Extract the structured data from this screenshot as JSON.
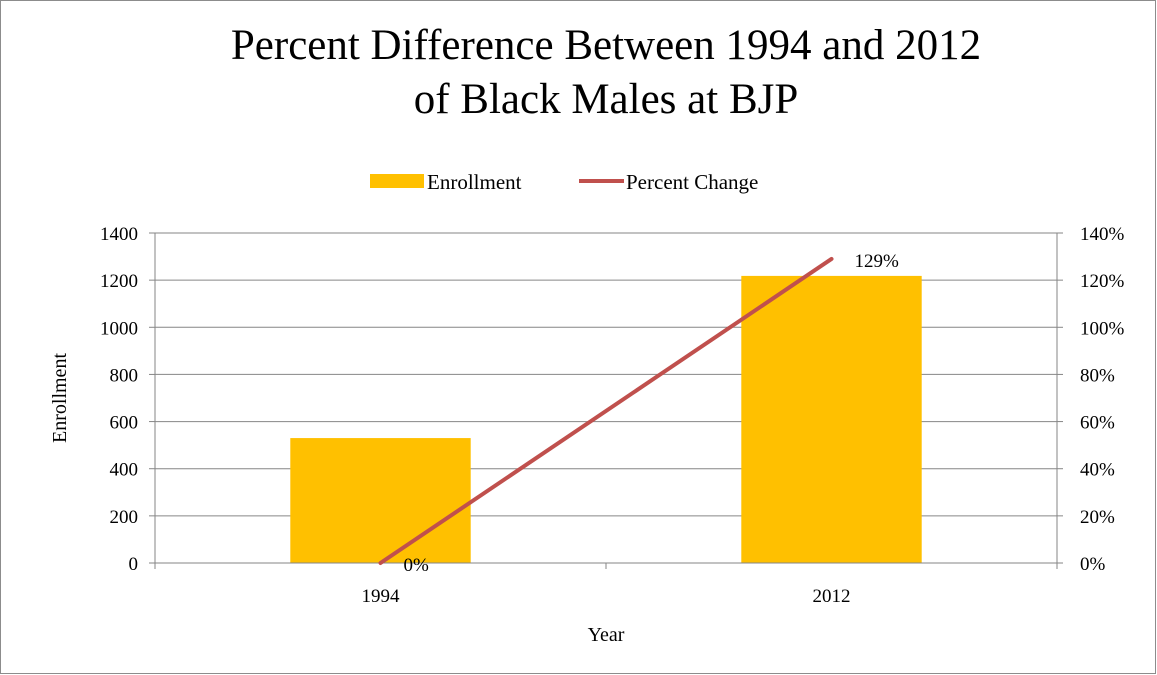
{
  "chart_data": {
    "type": "bar",
    "title_lines": [
      "Percent Difference Between 1994 and 2012",
      "of Black Males at BJP"
    ],
    "categories": [
      "1994",
      "2012"
    ],
    "xlabel": "Year",
    "ylabel": "Enrollment",
    "ylim": [
      0,
      1400
    ],
    "y_ticks": [
      "0",
      "200",
      "400",
      "600",
      "800",
      "1000",
      "1200",
      "1400"
    ],
    "y2lim": [
      0,
      140
    ],
    "y2_ticks": [
      "0%",
      "20%",
      "40%",
      "60%",
      "80%",
      "100%",
      "120%",
      "140%"
    ],
    "grid": true,
    "legend_position": "top",
    "series": [
      {
        "name": "Enrollment",
        "kind": "bar",
        "axis": "left",
        "color": "#FFC000",
        "values": [
          530,
          1218
        ]
      },
      {
        "name": "Percent Change",
        "kind": "line",
        "axis": "right",
        "color": "#C0504D",
        "values": [
          0,
          129
        ],
        "data_labels": [
          "0%",
          "129%"
        ]
      }
    ]
  }
}
